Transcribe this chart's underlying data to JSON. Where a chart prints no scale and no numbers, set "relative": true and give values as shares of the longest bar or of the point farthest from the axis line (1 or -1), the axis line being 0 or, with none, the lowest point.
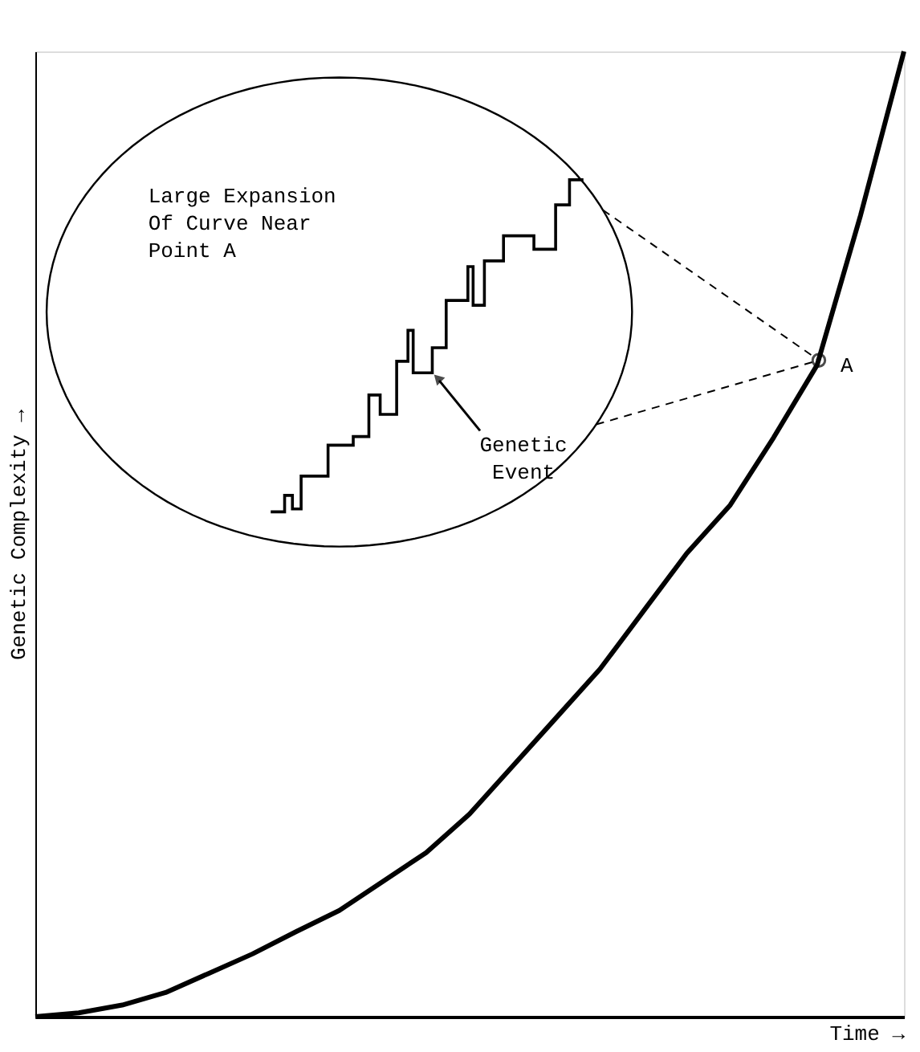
{
  "chart_data": {
    "type": "line",
    "relative": true,
    "xlabel": "Time →",
    "ylabel": "Genetic Complexity →",
    "grid": false,
    "marker": "none",
    "line_style": "solid",
    "categories": [
      null,
      null,
      null,
      null,
      null,
      null,
      null,
      null,
      null,
      null,
      null,
      null,
      null,
      null,
      null,
      null,
      null,
      null,
      null,
      null,
      null
    ],
    "series": [
      {
        "color": "#000000",
        "values": [
          0,
          0.004,
          0.012,
          0.025,
          0.045,
          0.065,
          0.088,
          0.11,
          0.14,
          0.17,
          0.21,
          0.26,
          0.31,
          0.36,
          0.42,
          0.48,
          0.53,
          0.6,
          0.675,
          0.83,
          1.0
        ]
      }
    ],
    "annotations": [
      "Large Expansion Of Curve Near Point A",
      "Genetic Event",
      "A"
    ]
  }
}
